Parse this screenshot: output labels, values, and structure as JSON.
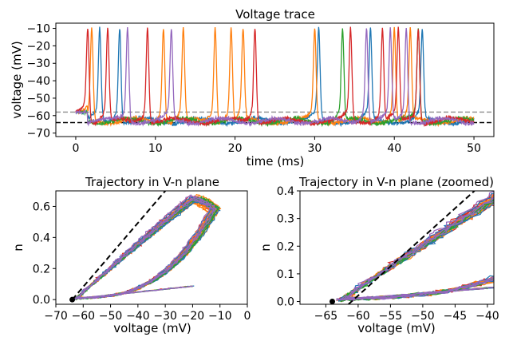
{
  "colors": {
    "blue": "#1f77b4",
    "orange": "#ff7f0e",
    "green": "#2ca02c",
    "red": "#d62728",
    "purple": "#9467bd",
    "rest_line": "#000000",
    "threshold_line": "#999999"
  },
  "chart_data": [
    {
      "type": "line",
      "title": "Voltage trace",
      "xlabel": "time (ms)",
      "ylabel": "voltage (mV)",
      "xlim": [
        -2.5,
        52.5
      ],
      "ylim": [
        -72,
        -7
      ],
      "xticks": [
        0,
        10,
        20,
        30,
        40,
        50
      ],
      "yticks": [
        -70,
        -60,
        -50,
        -40,
        -30,
        -20,
        -10
      ],
      "reference_lines": [
        {
          "y": -64,
          "style": "dashed",
          "color": "#000000"
        },
        {
          "y": -58,
          "style": "dashed",
          "color": "#999999"
        }
      ],
      "series": [
        {
          "color": "#1f77b4",
          "spike_times_ms": [
            3.0,
            5.5,
            30.5,
            37.0,
            43.5
          ]
        },
        {
          "color": "#ff7f0e",
          "spike_times_ms": [
            2.0,
            11.0,
            13.5,
            17.5,
            19.5,
            21.0,
            30.0,
            40.0,
            42.0
          ]
        },
        {
          "color": "#2ca02c",
          "spike_times_ms": [
            33.5,
            43.0
          ]
        },
        {
          "color": "#d62728",
          "spike_times_ms": [
            1.5,
            4.0,
            9.0,
            22.5,
            34.5,
            38.5,
            40.5,
            43.0
          ]
        },
        {
          "color": "#9467bd",
          "spike_times_ms": [
            6.5,
            12.0,
            36.5,
            39.5,
            41.5
          ]
        }
      ]
    },
    {
      "type": "line",
      "title": "Trajectory in V-n plane",
      "xlabel": "voltage (mV)",
      "ylabel": "n",
      "xlim": [
        -70,
        0
      ],
      "ylim": [
        -0.03,
        0.7
      ],
      "xticks": [
        -70,
        -60,
        -50,
        -40,
        -30,
        -20,
        -10,
        0
      ],
      "yticks": [
        0.0,
        0.2,
        0.4,
        0.6
      ],
      "rest_point": {
        "v": -64,
        "n": 0.0
      },
      "nullcline": {
        "v0": -64,
        "n0": 0.0,
        "v1": -29,
        "n1": 0.72
      }
    },
    {
      "type": "line",
      "title": "Trajectory in V-n plane (zoomed)",
      "xlabel": "voltage (mV)",
      "ylabel": "n",
      "xlim": [
        -69,
        -39
      ],
      "ylim": [
        -0.01,
        0.4
      ],
      "xticks": [
        -65,
        -60,
        -55,
        -50,
        -45,
        -40
      ],
      "yticks": [
        0.0,
        0.1,
        0.2,
        0.3,
        0.4
      ],
      "rest_point": {
        "v": -64,
        "n": 0.0
      },
      "nullcline": {
        "v0": -61.5,
        "n0": -0.01,
        "v1": -42.0,
        "n1": 0.4
      }
    }
  ]
}
